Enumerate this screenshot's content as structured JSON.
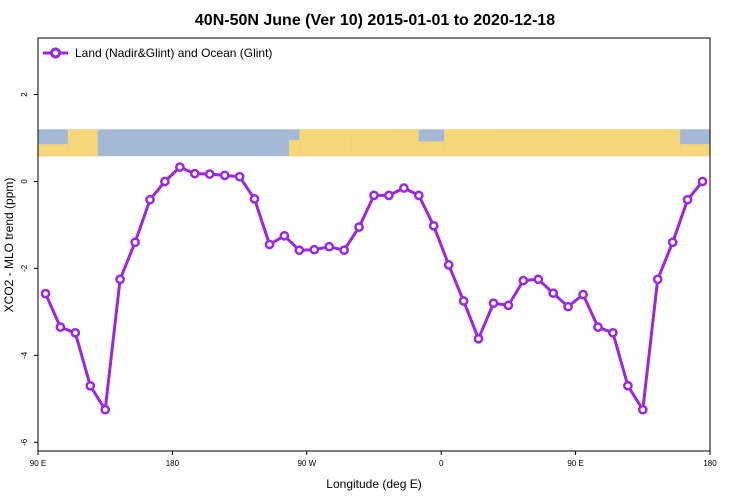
{
  "chart_data": {
    "type": "line",
    "title": "40N-50N June (Ver 10)   2015-01-01 to 2020-12-18",
    "xlabel": "Longitude (deg E)",
    "ylabel": "XCO2 - MLO trend (ppm)",
    "xlim": [
      90,
      540
    ],
    "ylim": [
      -6.2,
      3.3
    ],
    "x_ticks": [
      {
        "value": 90,
        "label": "90 E"
      },
      {
        "value": 180,
        "label": "180"
      },
      {
        "value": 270,
        "label": "90 W"
      },
      {
        "value": 360,
        "label": "0"
      },
      {
        "value": 450,
        "label": "90 E"
      },
      {
        "value": 540,
        "label": "180"
      }
    ],
    "y_ticks": [
      {
        "value": 2,
        "label": "2"
      },
      {
        "value": 0,
        "label": "0"
      },
      {
        "value": -2,
        "label": "-2"
      },
      {
        "value": -4,
        "label": "-4"
      },
      {
        "value": -6,
        "label": "-6"
      }
    ],
    "legend": {
      "position": "top-left"
    },
    "series": [
      {
        "name": "Land (Nadir&Glint) and Ocean (Glint)",
        "color": "#9a28e0",
        "x": [
          95,
          105,
          115,
          125,
          135,
          145,
          155,
          165,
          175,
          185,
          195,
          205,
          215,
          225,
          235,
          245,
          255,
          265,
          275,
          285,
          295,
          305,
          315,
          325,
          335,
          345,
          355,
          365,
          375,
          385,
          395,
          405,
          415,
          425,
          435,
          445,
          455,
          465,
          475,
          485,
          495,
          505,
          515,
          525,
          535
        ],
        "values": [
          -2.58,
          -3.35,
          -3.48,
          -4.7,
          -5.25,
          -2.25,
          -1.4,
          -0.42,
          0.0,
          0.33,
          0.18,
          0.17,
          0.14,
          0.11,
          -0.4,
          -1.45,
          -1.25,
          -1.58,
          -1.57,
          -1.5,
          -1.58,
          -1.05,
          -0.32,
          -0.32,
          -0.15,
          -0.32,
          -1.02,
          -1.92,
          -2.75,
          -3.62,
          -2.8,
          -2.85,
          -2.28,
          -2.25,
          -2.57,
          -2.88,
          -2.6,
          -3.35,
          -3.48,
          -4.7,
          -5.25,
          -2.25,
          -1.4,
          -0.42,
          0.0
        ]
      }
    ],
    "map_strip": {
      "y_range": [
        0.58,
        1.2
      ],
      "ocean_color": "#a5b8d6",
      "land_color": "#f5d679"
    }
  }
}
